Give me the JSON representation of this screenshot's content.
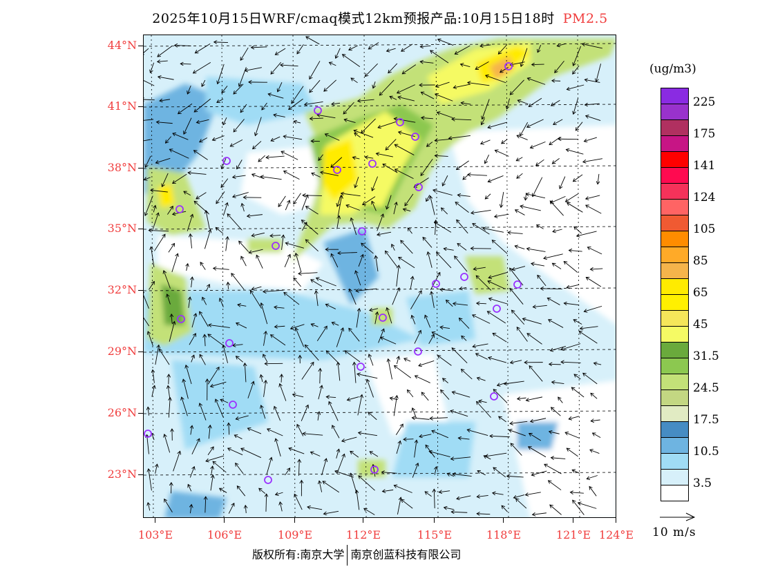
{
  "title": {
    "text": "2025年10月15日WRF/cmaq模式12km预报产品:10月15日18时",
    "variable": "PM2.5"
  },
  "axes": {
    "latitudes": [
      "44°N",
      "41°N",
      "38°N",
      "35°N",
      "32°N",
      "29°N",
      "26°N",
      "23°N"
    ],
    "longitudes": [
      "103°E",
      "106°E",
      "109°E",
      "112°E",
      "115°E",
      "118°E",
      "121°E",
      "124°E"
    ]
  },
  "legend": {
    "unit": "(ug/m3)",
    "colors": [
      "#8a2be2",
      "#9932cc",
      "#b03060",
      "#c71585",
      "#ff0000",
      "#ff0a50",
      "#f5325a",
      "#ff6464",
      "#f05a32",
      "#ff8c00",
      "#ffaa28",
      "#f5b44b",
      "#ffeb00",
      "#fff000",
      "#f5e65a",
      "#f5fa64",
      "#6aaa3c",
      "#8cc850",
      "#c3e178",
      "#c3d782",
      "#e1ebc3",
      "#468cc3",
      "#6eb4e1",
      "#a0dcf5",
      "#d7f0fa",
      "#ffffff"
    ],
    "labels": [
      "225",
      "175",
      "141",
      "124",
      "105",
      "85",
      "65",
      "45",
      "31.5",
      "24.5",
      "17.5",
      "10.5",
      "3.5"
    ]
  },
  "wind_reference": {
    "label": "10 m/s"
  },
  "footer": {
    "left": "版权所有:南京大学",
    "right": "南京创蓝科技有限公司"
  },
  "marker_color": "#9b30ff"
}
